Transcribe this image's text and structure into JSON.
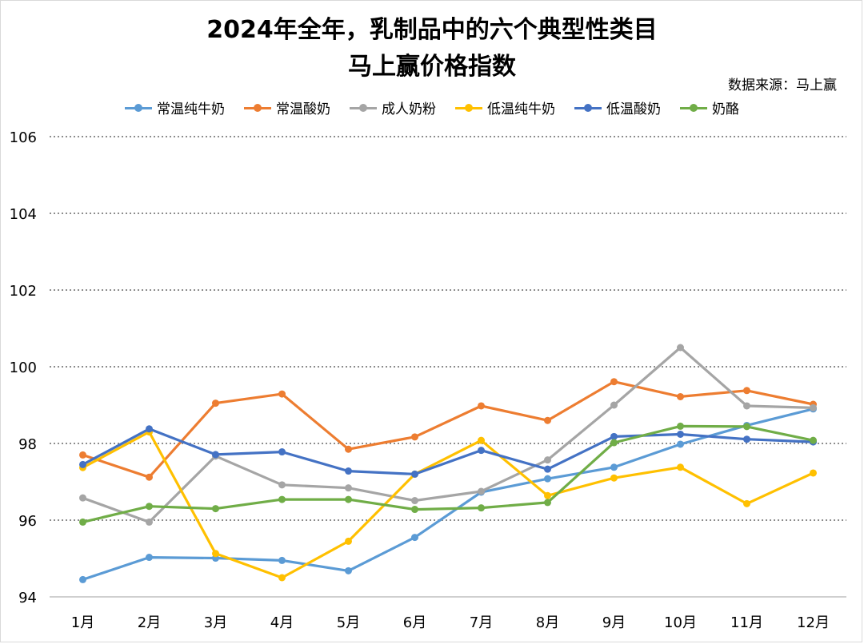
{
  "header": {
    "title_line1": "2024年全年，乳制品中的六个典型性类目",
    "title_line2": "马上赢价格指数",
    "source": "数据来源：马上赢"
  },
  "chart_data": {
    "type": "line",
    "title": "2024年全年，乳制品中的六个典型性类目 马上赢价格指数",
    "categories": [
      "1月",
      "2月",
      "3月",
      "4月",
      "5月",
      "6月",
      "7月",
      "8月",
      "9月",
      "10月",
      "11月",
      "12月"
    ],
    "ylim": [
      94,
      106
    ],
    "yticks": [
      "94",
      "96",
      "98",
      "100",
      "102",
      "104",
      "106"
    ],
    "grid": "horizontal dotted",
    "legend_position": "top",
    "series": [
      {
        "name": "常温纯牛奶",
        "color": "#5b9bd5",
        "values": [
          94.45,
          95.03,
          95.01,
          94.95,
          94.68,
          95.55,
          96.73,
          97.08,
          97.38,
          97.98,
          98.47,
          98.9
        ]
      },
      {
        "name": "常温酸奶",
        "color": "#ed7d31",
        "values": [
          97.7,
          97.12,
          99.05,
          99.29,
          97.85,
          98.17,
          98.98,
          98.6,
          99.61,
          99.22,
          99.38,
          99.02
        ]
      },
      {
        "name": "成人奶粉",
        "color": "#a5a5a5",
        "values": [
          96.58,
          95.95,
          97.67,
          96.92,
          96.84,
          96.51,
          96.75,
          97.57,
          99.0,
          100.5,
          98.98,
          98.93
        ]
      },
      {
        "name": "低温纯牛奶",
        "color": "#ffc000",
        "values": [
          97.37,
          98.3,
          95.13,
          94.5,
          95.45,
          97.2,
          98.08,
          96.64,
          97.1,
          97.38,
          96.43,
          97.23
        ]
      },
      {
        "name": "低温酸奶",
        "color": "#4472c4",
        "values": [
          97.45,
          98.38,
          97.71,
          97.78,
          97.28,
          97.2,
          97.82,
          97.33,
          98.18,
          98.24,
          98.11,
          98.04
        ]
      },
      {
        "name": "奶酪",
        "color": "#70ad47",
        "values": [
          95.95,
          96.36,
          96.3,
          96.54,
          96.54,
          96.28,
          96.32,
          96.46,
          98.02,
          98.45,
          98.44,
          98.08
        ]
      }
    ]
  }
}
